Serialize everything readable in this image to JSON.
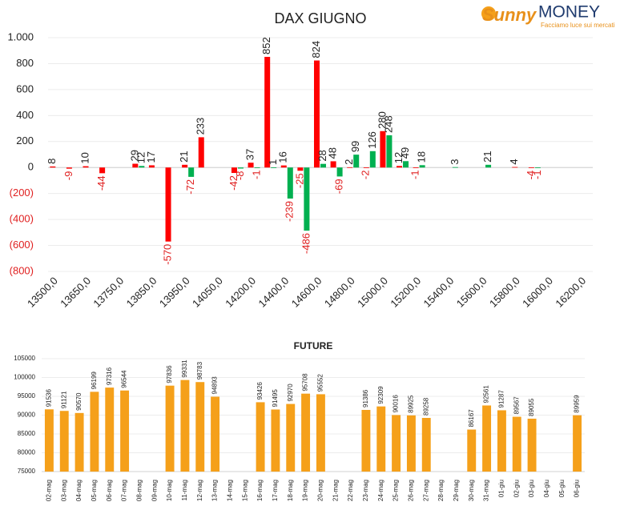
{
  "logo": {
    "brand": "Sunny",
    "name": "MONEY",
    "tagline": "Facciamo luce sui mercati"
  },
  "chart_data": [
    {
      "type": "bar",
      "title": "DAX GIUGNO",
      "categories": [
        "13500,0",
        null,
        "13650,0",
        null,
        "13750,0",
        null,
        "13850,0",
        null,
        "13950,0",
        null,
        "14050,0",
        null,
        "14200,0",
        null,
        "14400,0",
        null,
        "14600,0",
        null,
        "14800,0",
        null,
        "15000,0",
        null,
        "15200,0",
        null,
        "15400,0",
        null,
        "15600,0",
        null,
        "15800,0",
        null,
        "16000,0",
        null,
        "16200,0"
      ],
      "series": [
        {
          "color": "#ff0000",
          "values": [
            8,
            -9,
            10,
            -44,
            null,
            29,
            17,
            -570,
            21,
            233,
            null,
            -42,
            37,
            852,
            16,
            -25,
            824,
            48,
            2,
            -2,
            280,
            12,
            -1,
            null,
            null,
            null,
            null,
            null,
            4,
            -4,
            null,
            null,
            null
          ]
        },
        {
          "color": "#00b050",
          "values": [
            null,
            null,
            null,
            null,
            null,
            12,
            null,
            null,
            -72,
            null,
            null,
            -8,
            -1,
            1,
            -239,
            -486,
            28,
            -69,
            99,
            126,
            248,
            49,
            18,
            null,
            3,
            null,
            21,
            null,
            null,
            -1,
            null,
            null,
            null
          ]
        }
      ],
      "ylim": [
        -800,
        1000
      ],
      "yticks": [
        {
          "value": -800,
          "label": "(800)"
        },
        {
          "value": -600,
          "label": "(600)"
        },
        {
          "value": -400,
          "label": "(400)"
        },
        {
          "value": -200,
          "label": "(200)"
        },
        0,
        200,
        400,
        600,
        800,
        {
          "value": 1000,
          "label": "1.000"
        }
      ],
      "grid": true
    },
    {
      "type": "bar",
      "title": "FUTURE",
      "categories": [
        "02-mag",
        "03-mag",
        "04-mag",
        "05-mag",
        "06-mag",
        "07-mag",
        "08-mag",
        "09-mag",
        "10-mag",
        "11-mag",
        "12-mag",
        "13-mag",
        "14-mag",
        "15-mag",
        "16-mag",
        "17-mag",
        "18-mag",
        "19-mag",
        "20-mag",
        "21-mag",
        "22-mag",
        "23-mag",
        "24-mag",
        "25-mag",
        "26-mag",
        "27-mag",
        "28-mag",
        "29-mag",
        "30-mag",
        "31-mag",
        "01-giu",
        "02-giu",
        "03-giu",
        "04-giu",
        "05-giu",
        "06-giu"
      ],
      "series": [
        {
          "color": "#f5a01a",
          "values": [
            91536,
            91121,
            90570,
            96199,
            97316,
            96544,
            null,
            null,
            97836,
            99331,
            98783,
            94893,
            null,
            null,
            93426,
            91495,
            92970,
            95708,
            95552,
            null,
            null,
            91386,
            92309,
            90016,
            89925,
            89258,
            null,
            null,
            86167,
            92561,
            91287,
            89567,
            89055,
            null,
            null,
            89959
          ]
        }
      ],
      "ylim": [
        75000,
        105000
      ],
      "yticks": [
        75000,
        80000,
        85000,
        90000,
        95000,
        100000,
        105000
      ],
      "grid": true
    }
  ]
}
